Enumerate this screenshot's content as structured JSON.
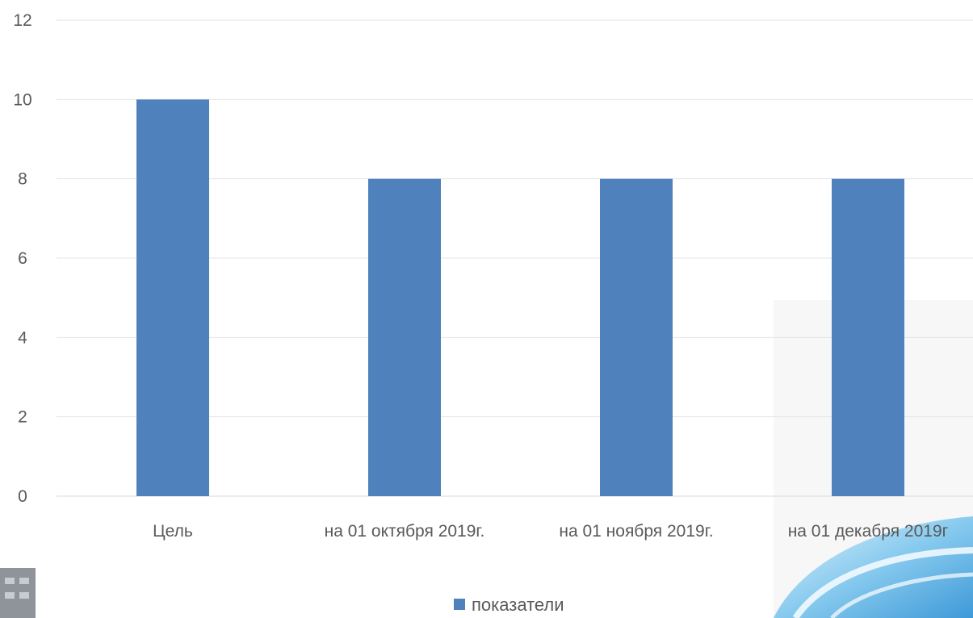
{
  "chart_data": {
    "type": "bar",
    "title": "",
    "xlabel": "",
    "ylabel": "",
    "categories": [
      "Цель",
      "на 01 октября 2019г.",
      "на 01 ноября 2019г.",
      "на 01 декабря 2019г"
    ],
    "series": [
      {
        "name": "показатели",
        "values": [
          10,
          8,
          8,
          8
        ],
        "color": "#4f81bd"
      }
    ],
    "ylim": [
      0,
      12
    ],
    "yticks": [
      0,
      2,
      4,
      6,
      8,
      10,
      12
    ],
    "grid": true,
    "legend": {
      "position": "bottom",
      "entries": [
        "показатели"
      ]
    }
  }
}
